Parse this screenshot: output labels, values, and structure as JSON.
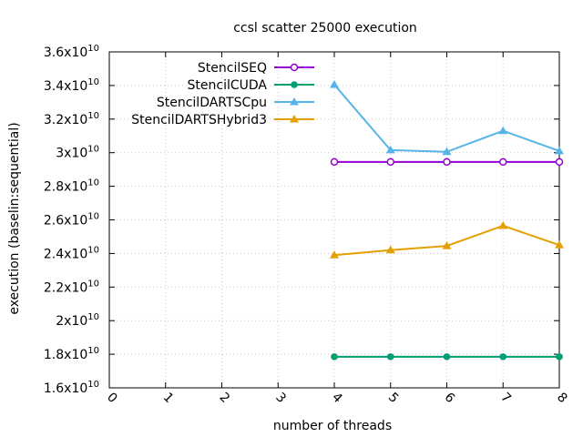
{
  "chart_data": {
    "type": "line",
    "title": "ccsl scatter 25000 execution",
    "xlabel": "number of threads",
    "ylabel": "execution (baselin:sequential)",
    "xlim": [
      0,
      8
    ],
    "ylim": [
      16000000000.0,
      36000000000.0
    ],
    "x_ticks": [
      0,
      1,
      2,
      3,
      4,
      5,
      6,
      7,
      8
    ],
    "x_tick_labels": [
      "0",
      "1",
      "2",
      "3",
      "4",
      "5",
      "6",
      "7",
      "8"
    ],
    "y_ticks": [
      16000000000.0,
      18000000000.0,
      20000000000.0,
      22000000000.0,
      24000000000.0,
      26000000000.0,
      28000000000.0,
      30000000000.0,
      32000000000.0,
      34000000000.0,
      36000000000.0
    ],
    "y_tick_mantissas": [
      "1.6",
      "1.8",
      "2",
      "2.2",
      "2.4",
      "2.6",
      "2.8",
      "3",
      "3.2",
      "3.4",
      "3.6"
    ],
    "y_tick_base": "x10",
    "y_tick_exponent": "10",
    "grid": true,
    "legend_position": "top-left",
    "series": [
      {
        "name": "StencilSEQ",
        "color": "#9400d3",
        "marker": "circle-open",
        "x": [
          4,
          5,
          6,
          7,
          8
        ],
        "values": [
          29450000000.0,
          29450000000.0,
          29450000000.0,
          29450000000.0,
          29450000000.0
        ]
      },
      {
        "name": "StencilCUDA",
        "color": "#009e73",
        "marker": "circle-filled",
        "x": [
          4,
          5,
          6,
          7,
          8
        ],
        "values": [
          17850000000.0,
          17850000000.0,
          17850000000.0,
          17850000000.0,
          17850000000.0
        ]
      },
      {
        "name": "StencilDARTSCpu",
        "color": "#56b4e9",
        "marker": "triangle",
        "x": [
          4,
          5,
          6,
          7,
          8
        ],
        "values": [
          34050000000.0,
          30150000000.0,
          30050000000.0,
          31300000000.0,
          30100000000.0
        ]
      },
      {
        "name": "StencilDARTSHybrid3",
        "color": "#e69f00",
        "marker": "triangle",
        "x": [
          4,
          5,
          6,
          7,
          8
        ],
        "values": [
          23900000000.0,
          24200000000.0,
          24450000000.0,
          25650000000.0,
          24500000000.0
        ]
      }
    ]
  }
}
